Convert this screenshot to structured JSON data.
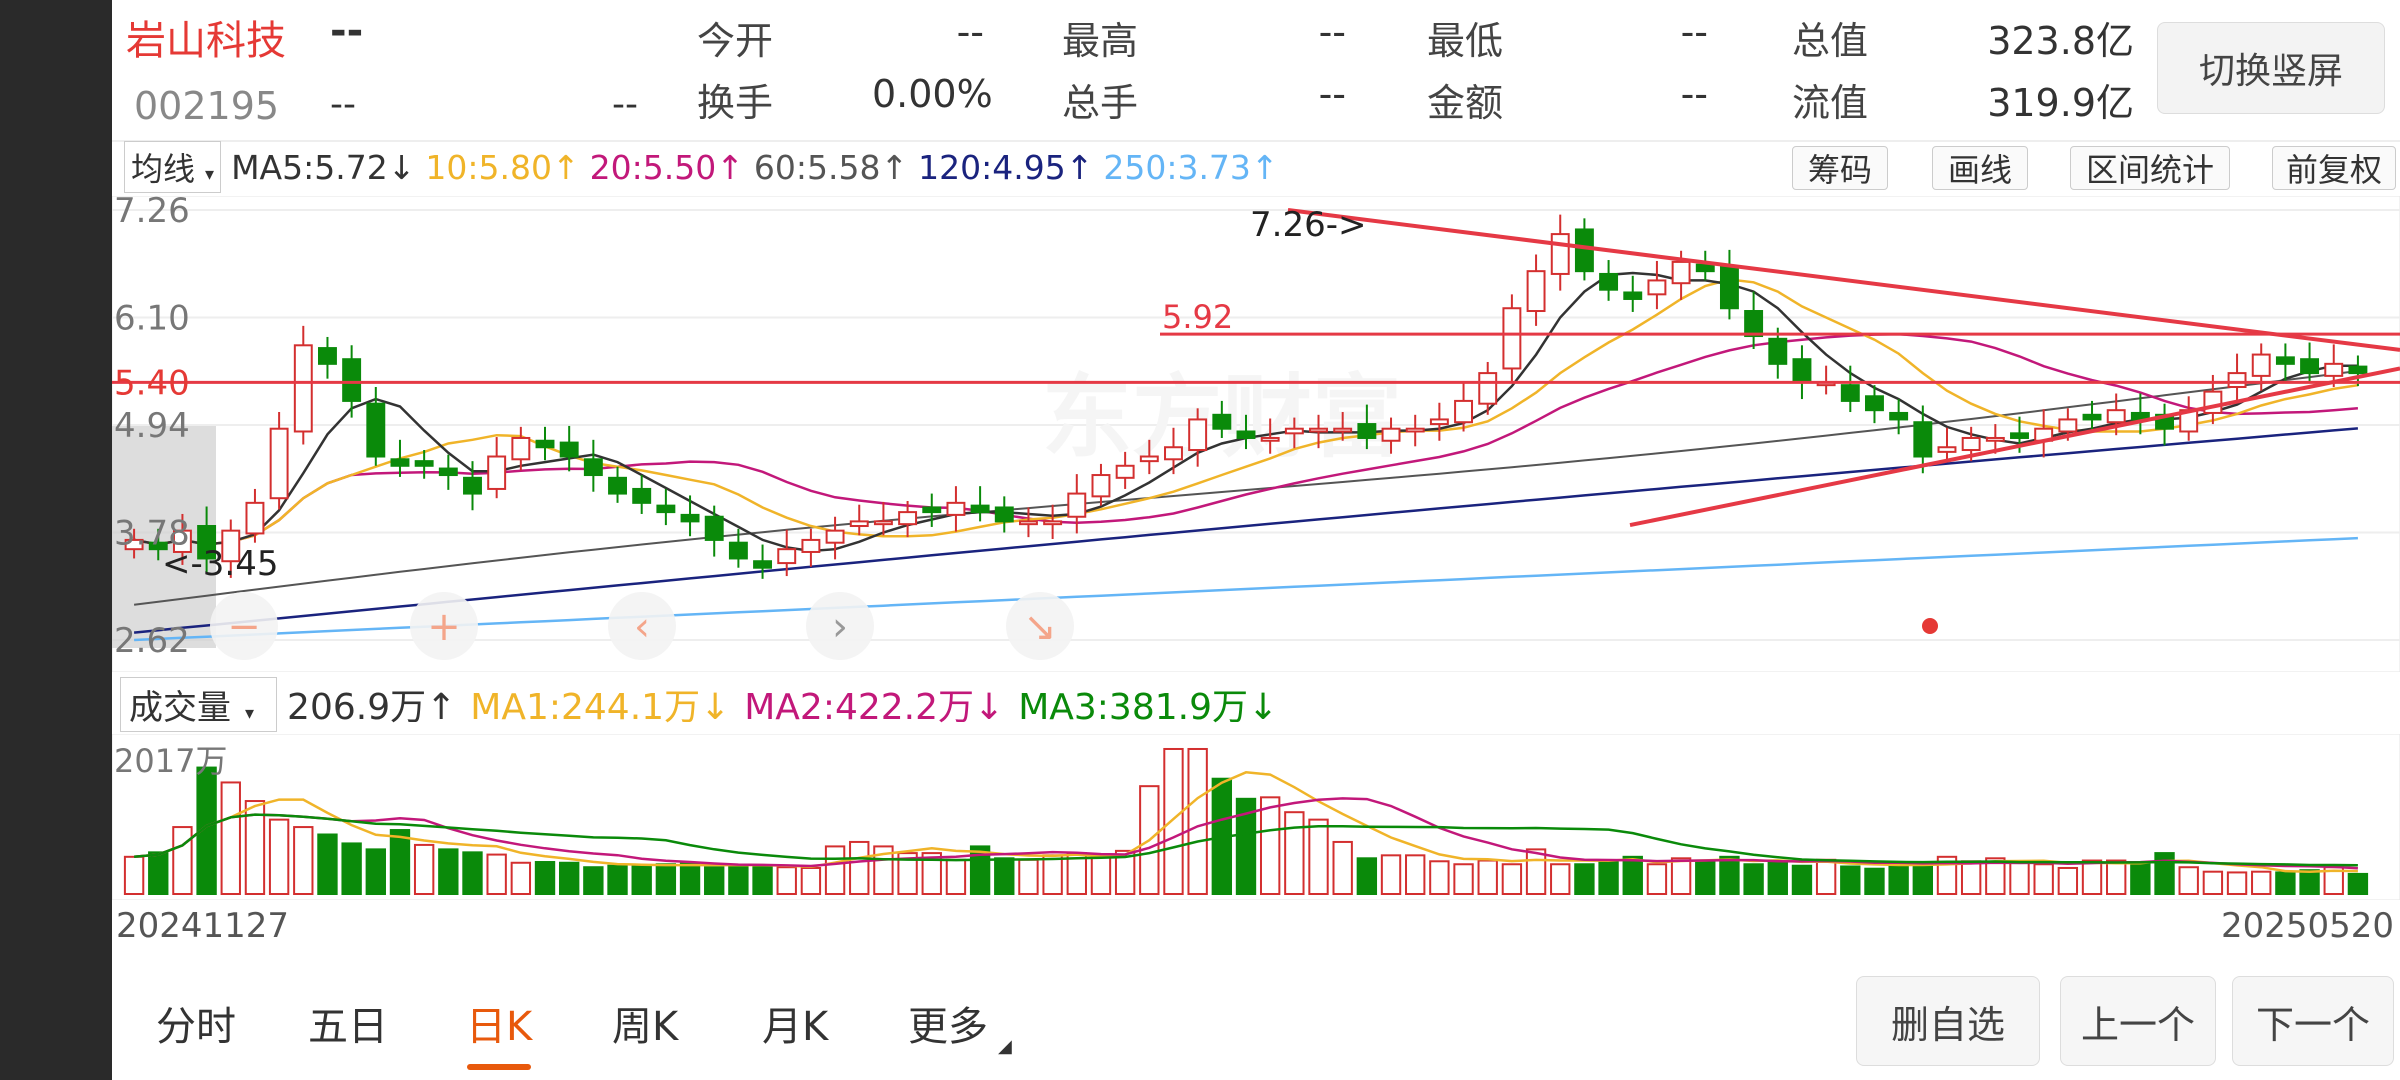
{
  "stock": {
    "name": "岩山科技",
    "code": "002195",
    "price": "--",
    "change": "--",
    "change_pct": "--"
  },
  "quote": {
    "open_label": "今开",
    "open": "--",
    "high_label": "最高",
    "high": "--",
    "low_label": "最低",
    "low": "--",
    "mcap_label": "总值",
    "mcap": "323.8亿",
    "turnover_label": "换手",
    "turnover": "0.00%",
    "vol_label": "总手",
    "vol": "--",
    "amount_label": "金额",
    "amount": "--",
    "float_label": "流值",
    "float": "319.9亿"
  },
  "switch_label": "切换竖屏",
  "ma_bar": {
    "selector": "均线",
    "ma5": "MA5:5.72↓",
    "ma10": "10:5.80↑",
    "ma20": "20:5.50↑",
    "ma60": "60:5.58↑",
    "ma120": "120:4.95↑",
    "ma250": "250:3.73↑",
    "colors": {
      "ma5": "#333333",
      "ma10": "#f0b429",
      "ma20": "#c2187a",
      "ma60": "#555555",
      "ma120": "#1a237e",
      "ma250": "#64b5f6"
    }
  },
  "tools": {
    "chips": "筹码",
    "draw": "画线",
    "range_stats": "区间统计",
    "adjust": "前复权"
  },
  "price_axis": [
    "7.26",
    "6.10",
    "5.40",
    "4.94",
    "3.78",
    "2.62"
  ],
  "annotations": {
    "high": "7.26->",
    "low": "<-3.45",
    "line1": "5.92",
    "line2": "5.40"
  },
  "watermark": "东方财富",
  "vol_bar": {
    "selector": "成交量",
    "vol": "206.9万↑",
    "ma1": "MA1:244.1万↓",
    "ma2": "MA2:422.2万↓",
    "ma3": "MA3:381.9万↓"
  },
  "vol_axis_max": "2017万",
  "dates": {
    "start": "20241127",
    "end": "20250520"
  },
  "tabs": [
    "分时",
    "五日",
    "日K",
    "周K",
    "月K",
    "更多"
  ],
  "active_tab": "日K",
  "buttons": {
    "remove": "删自选",
    "prev": "上一个",
    "next": "下一个"
  },
  "candles": [
    3.7,
    3.6,
    3.8,
    3.5,
    3.8,
    4.1,
    4.9,
    5.8,
    5.6,
    5.2,
    4.6,
    4.5,
    4.5,
    4.4,
    4.2,
    4.6,
    4.8,
    4.7,
    4.6,
    4.4,
    4.2,
    4.1,
    4.0,
    3.9,
    3.7,
    3.5,
    3.4,
    3.6,
    3.7,
    3.8,
    3.9,
    3.9,
    4.0,
    4.0,
    4.1,
    4.0,
    3.9,
    3.9,
    3.9,
    4.2,
    4.4,
    4.5,
    4.6,
    4.7,
    5.0,
    4.9,
    4.8,
    4.8,
    4.9,
    4.9,
    4.9,
    4.8,
    4.9,
    4.9,
    5.0,
    5.2,
    5.5,
    6.2,
    6.6,
    7.0,
    6.6,
    6.4,
    6.3,
    6.5,
    6.7,
    6.6,
    6.2,
    5.9,
    5.6,
    5.4,
    5.4,
    5.2,
    5.1,
    5.0,
    4.6,
    4.7,
    4.8,
    4.8,
    4.8,
    4.9,
    5.0,
    5.0,
    5.1,
    5.0,
    4.9,
    5.1,
    5.3,
    5.5,
    5.7,
    5.6,
    5.5,
    5.6,
    5.5
  ],
  "volumes": [
    500,
    560,
    900,
    1700,
    1500,
    1250,
    1000,
    900,
    800,
    680,
    600,
    860,
    660,
    600,
    560,
    530,
    420,
    430,
    420,
    360,
    380,
    380,
    400,
    420,
    360,
    380,
    380,
    360,
    350,
    640,
    700,
    640,
    550,
    550,
    460,
    640,
    480,
    460,
    520,
    550,
    520,
    580,
    1450,
    1950,
    1950,
    1550,
    1280,
    1300,
    1100,
    1000,
    700,
    480,
    520,
    520,
    440,
    400,
    450,
    400,
    600,
    400,
    400,
    440,
    500,
    400,
    480,
    440,
    500,
    400,
    440,
    380,
    460,
    370,
    340,
    400,
    380,
    500,
    440,
    480,
    420,
    400,
    350,
    450,
    450,
    420,
    550,
    360,
    300,
    290,
    300,
    290,
    320,
    360,
    270
  ]
}
